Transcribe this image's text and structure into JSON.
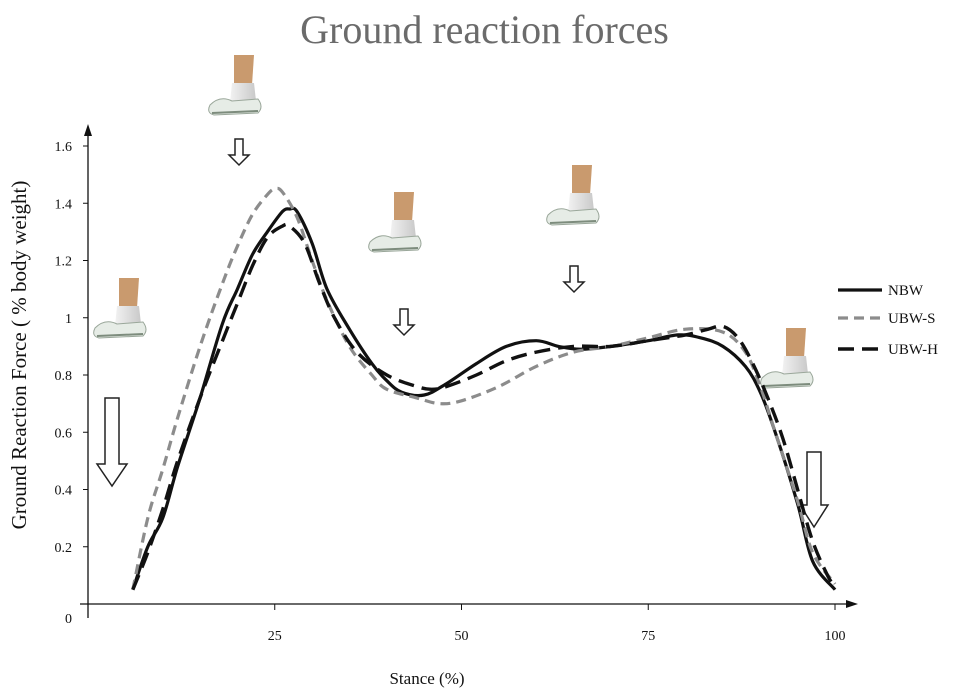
{
  "chart_data": {
    "type": "line",
    "title": "Ground reaction forces",
    "xlabel": "Stance (%)",
    "ylabel": "Ground Reaction Force ( % body weight)",
    "xlim": [
      0,
      100
    ],
    "ylim": [
      0,
      1.6
    ],
    "x_ticks": [
      "25",
      "50",
      "75",
      "100"
    ],
    "y_ticks": [
      "0",
      "0.2",
      "0.4",
      "0.6",
      "0.8",
      "1",
      "1.2",
      "1.4",
      "1.6"
    ],
    "legend_position": "right",
    "grid": false,
    "series": [
      {
        "name": "NBW",
        "style": "solid",
        "color": "#111111",
        "x": [
          6,
          8,
          10,
          12,
          15,
          18,
          20,
          22,
          24,
          26,
          27,
          28,
          30,
          32,
          35,
          38,
          40,
          42,
          45,
          48,
          52,
          56,
          60,
          63,
          66,
          70,
          75,
          79,
          82,
          85,
          88,
          90,
          92,
          95,
          97,
          100
        ],
        "y": [
          0.05,
          0.2,
          0.3,
          0.48,
          0.72,
          0.98,
          1.1,
          1.22,
          1.3,
          1.37,
          1.38,
          1.37,
          1.26,
          1.1,
          0.96,
          0.84,
          0.78,
          0.74,
          0.73,
          0.77,
          0.84,
          0.9,
          0.92,
          0.9,
          0.89,
          0.9,
          0.92,
          0.94,
          0.93,
          0.9,
          0.83,
          0.74,
          0.6,
          0.35,
          0.15,
          0.05
        ]
      },
      {
        "name": "UBW-S",
        "style": "dashed-gray",
        "color": "#8c8c8c",
        "x": [
          6,
          8,
          10,
          12,
          15,
          18,
          20,
          22,
          24,
          25,
          26,
          28,
          30,
          32,
          35,
          38,
          40,
          44,
          47,
          50,
          55,
          60,
          65,
          70,
          75,
          80,
          85,
          88,
          90,
          92,
          95,
          97,
          100
        ],
        "y": [
          0.05,
          0.3,
          0.47,
          0.65,
          0.9,
          1.12,
          1.25,
          1.36,
          1.43,
          1.45,
          1.44,
          1.35,
          1.2,
          1.06,
          0.9,
          0.8,
          0.75,
          0.72,
          0.7,
          0.71,
          0.76,
          0.83,
          0.88,
          0.9,
          0.93,
          0.96,
          0.95,
          0.88,
          0.76,
          0.6,
          0.36,
          0.18,
          0.07
        ]
      },
      {
        "name": "UBW-H",
        "style": "dashed-black",
        "color": "#111111",
        "x": [
          6,
          8,
          10,
          12,
          15,
          18,
          20,
          22,
          24,
          26,
          27,
          29,
          31,
          33,
          36,
          40,
          44,
          46,
          48,
          52,
          56,
          60,
          65,
          70,
          75,
          80,
          83,
          85,
          87,
          89,
          91,
          93,
          95,
          97,
          99,
          100
        ],
        "y": [
          0.05,
          0.18,
          0.33,
          0.5,
          0.72,
          0.92,
          1.05,
          1.18,
          1.28,
          1.32,
          1.32,
          1.26,
          1.12,
          1.0,
          0.88,
          0.8,
          0.76,
          0.75,
          0.76,
          0.8,
          0.85,
          0.88,
          0.9,
          0.9,
          0.92,
          0.94,
          0.96,
          0.97,
          0.93,
          0.84,
          0.72,
          0.58,
          0.4,
          0.22,
          0.1,
          0.06
        ]
      }
    ]
  }
}
